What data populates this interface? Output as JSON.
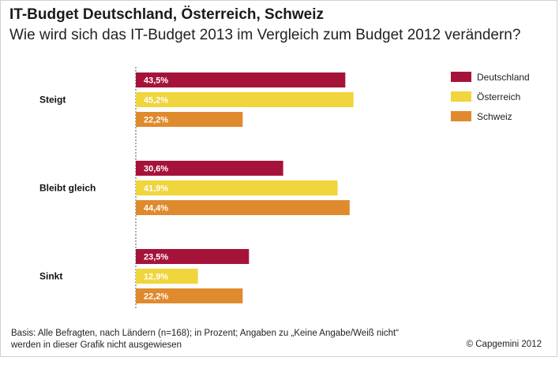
{
  "header": {
    "title": "IT-Budget Deutschland, Österreich, Schweiz",
    "subtitle": "Wie wird sich das IT-Budget 2013 im Vergleich zum Budget 2012 verändern?"
  },
  "footer": {
    "footnote": "Basis: Alle Befragten, nach Ländern (n=168); in Prozent; Angaben zu „Keine Angabe/Weiß nicht“ werden in dieser Grafik nicht ausgewiesen",
    "copyright": "© Capgemini 2012"
  },
  "chart_data": {
    "type": "bar",
    "orientation": "horizontal",
    "title": "IT-Budget Deutschland, Österreich, Schweiz",
    "subtitle": "Wie wird sich das IT-Budget 2013 im Vergleich zum Budget 2012 verändern?",
    "categories": [
      "Steigt",
      "Bleibt gleich",
      "Sinkt"
    ],
    "series": [
      {
        "name": "Deutschland",
        "color": "#a6133a",
        "values": [
          43.5,
          30.6,
          23.5
        ],
        "labels": [
          "43,5%",
          "30,6%",
          "23,5%"
        ]
      },
      {
        "name": "Österreich",
        "color": "#f0d53c",
        "values": [
          45.2,
          41.9,
          12.9
        ],
        "labels": [
          "45,2%",
          "41,9%",
          "12,9%"
        ]
      },
      {
        "name": "Schweiz",
        "color": "#e08a2e",
        "values": [
          22.2,
          44.4,
          22.2
        ],
        "labels": [
          "22,2%",
          "44,4%",
          "22,2%"
        ]
      }
    ],
    "xlim": [
      0,
      50
    ],
    "unit": "%",
    "grid": false,
    "legend": "top-right"
  }
}
